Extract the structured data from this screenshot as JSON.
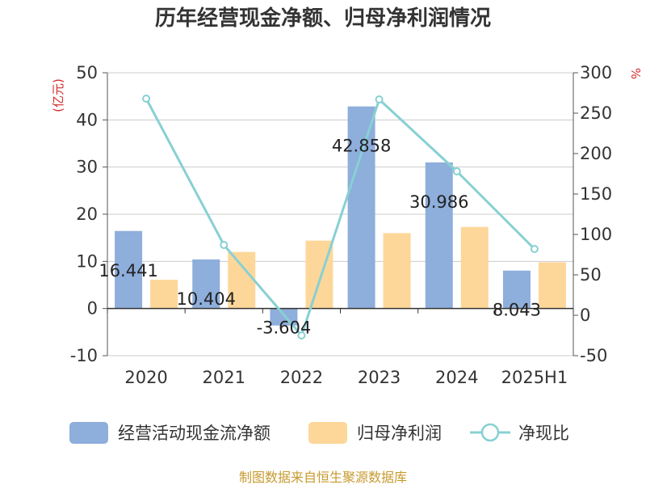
{
  "chart_data": {
    "type": "bar",
    "title": "历年经营现金净额、归母净利润情况",
    "categories": [
      "2020",
      "2021",
      "2022",
      "2023",
      "2024",
      "2025H1"
    ],
    "series": [
      {
        "name": "经营活动现金流净额",
        "type": "bar",
        "axis": "left",
        "color": "#8eaedc",
        "values": [
          16.441,
          10.404,
          -3.604,
          42.858,
          30.986,
          8.043
        ],
        "labels": [
          "16.441",
          "10.404",
          "-3.604",
          "42.858",
          "30.986",
          "8.043"
        ]
      },
      {
        "name": "归母净利润",
        "type": "bar",
        "axis": "left",
        "color": "#fdd79a",
        "values": [
          6.1,
          12.0,
          14.4,
          16.0,
          17.3,
          9.8
        ]
      },
      {
        "name": "净现比",
        "type": "line",
        "axis": "right",
        "color": "#88d0d3",
        "values": [
          268,
          87,
          -25,
          267,
          178,
          82
        ]
      }
    ],
    "y_left": {
      "unit": "(亿元)",
      "ylim": [
        -10,
        50
      ],
      "ticks": [
        -10,
        0,
        10,
        20,
        30,
        40,
        50
      ]
    },
    "y_right": {
      "unit": "%",
      "ylim": [
        -50,
        300
      ],
      "ticks": [
        -50,
        0,
        50,
        100,
        150,
        200,
        250,
        300
      ]
    },
    "grid": true,
    "legend": "bottom"
  },
  "source": "制图数据来自恒生聚源数据库"
}
